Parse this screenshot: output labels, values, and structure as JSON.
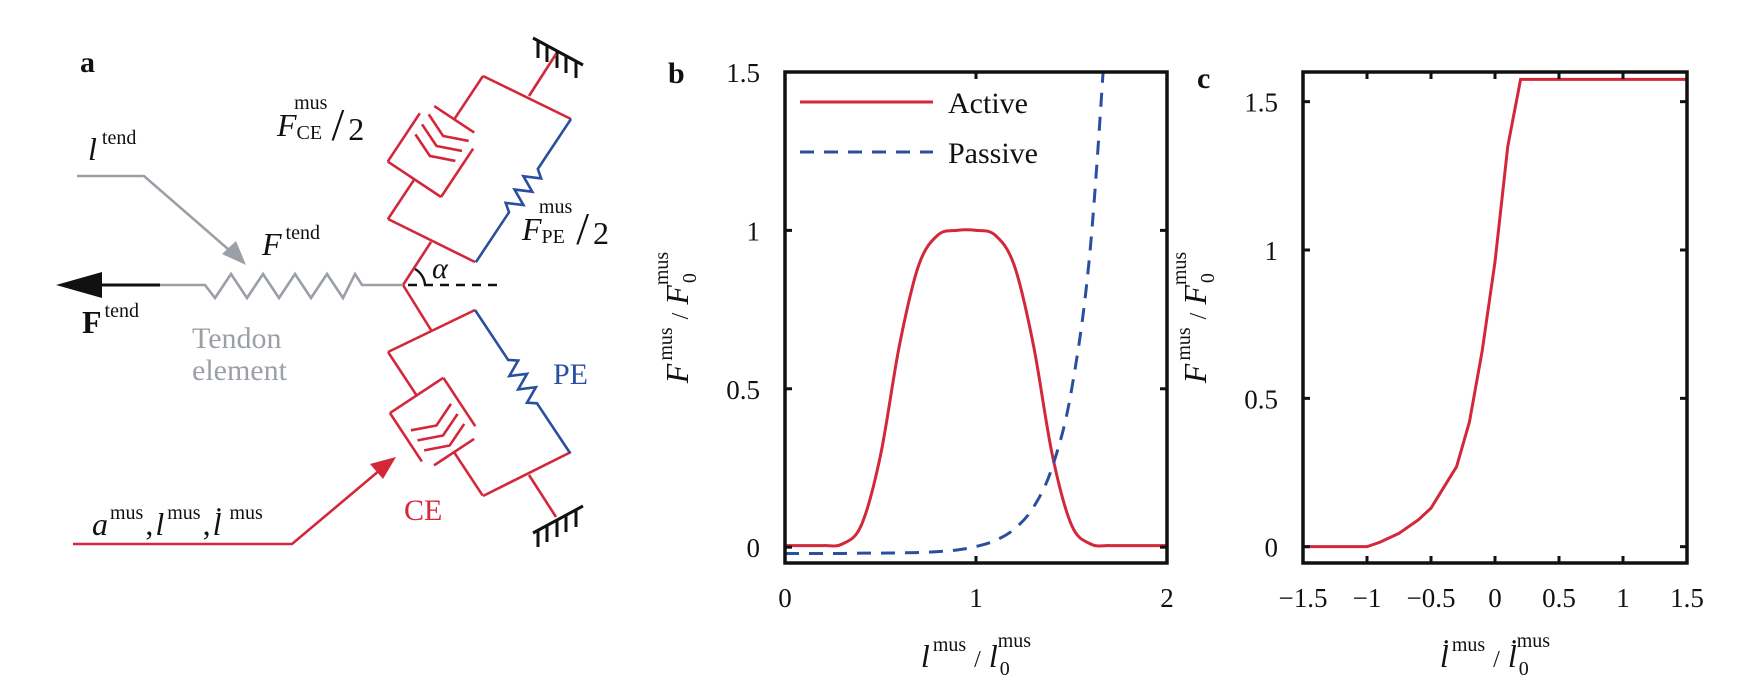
{
  "colors": {
    "muscle": "#d3283a",
    "passive": "#2b4f9f",
    "tendon": "#9b9fa6",
    "ink": "#111111"
  },
  "panel_a": {
    "label": "a",
    "l_tend": {
      "base": "l",
      "sup": "tend"
    },
    "F_tend_spring": {
      "base": "F",
      "sup": "tend"
    },
    "F_tend_force": {
      "base": "F",
      "sup": "tend"
    },
    "tendon_element": [
      "Tendon",
      "element"
    ],
    "F_CE": {
      "base": "F",
      "sub": "CE",
      "sup": "mus",
      "slash": "/",
      "den": "2"
    },
    "F_PE": {
      "base": "F",
      "sub": "PE",
      "sup": "mus",
      "slash": "/",
      "den": "2"
    },
    "alpha": "α",
    "PE": "PE",
    "CE": "CE",
    "inputs": {
      "sep": ",",
      "items": [
        {
          "base": "a",
          "sup": "mus"
        },
        {
          "base": "l",
          "sup": "mus"
        },
        {
          "base": "l̇",
          "sup": "mus"
        }
      ]
    }
  },
  "chart_data": [
    {
      "panel_label": "b",
      "type": "line",
      "xlim": [
        0,
        2
      ],
      "ylim": [
        -0.05,
        1.5
      ],
      "xticks": [
        0,
        1,
        2
      ],
      "xtick_labels": [
        "0",
        "1",
        "2"
      ],
      "yticks": [
        0,
        0.5,
        1,
        1.5
      ],
      "ytick_labels": [
        "0",
        "0.5",
        "1",
        "1.5"
      ],
      "xlabel": {
        "num": "l",
        "num_sup": "mus",
        "slash": "/",
        "den": "l",
        "den_sub": "0",
        "den_sup": "mus"
      },
      "ylabel": {
        "num": "F",
        "num_sup": "mus",
        "slash": "/",
        "den": "F",
        "den_sub": "0",
        "den_sup": "mus"
      },
      "legend": {
        "placement": "top-left",
        "entries": [
          "Active",
          "Passive"
        ]
      },
      "grid": false,
      "series": [
        {
          "name": "Active",
          "style": "solid",
          "color": "#d3283a",
          "x": [
            0,
            0.1,
            0.2,
            0.3,
            0.4,
            0.5,
            0.6,
            0.7,
            0.8,
            0.9,
            1.0,
            1.1,
            1.2,
            1.3,
            1.4,
            1.5,
            1.6,
            1.7,
            1.8,
            1.9,
            2.0
          ],
          "y": [
            0.005,
            0.005,
            0.005,
            0.01,
            0.07,
            0.29,
            0.64,
            0.89,
            0.985,
            1.0,
            1.0,
            0.985,
            0.89,
            0.64,
            0.29,
            0.07,
            0.01,
            0.005,
            0.005,
            0.005,
            0.005
          ]
        },
        {
          "name": "Passive",
          "style": "dashed",
          "color": "#2b4f9f",
          "x": [
            0,
            0.1,
            0.2,
            0.3,
            0.4,
            0.5,
            0.6,
            0.7,
            0.8,
            0.9,
            1.0,
            1.1,
            1.2,
            1.3,
            1.4,
            1.5,
            1.6,
            1.7
          ],
          "y": [
            -0.02,
            -0.02,
            -0.02,
            -0.02,
            -0.019,
            -0.019,
            -0.018,
            -0.017,
            -0.014,
            -0.009,
            0.002,
            0.021,
            0.057,
            0.125,
            0.254,
            0.496,
            0.954,
            1.82
          ]
        }
      ]
    },
    {
      "panel_label": "c",
      "type": "line",
      "xlim": [
        -1.5,
        1.5
      ],
      "ylim": [
        -0.055,
        1.6
      ],
      "xticks": [
        -1.5,
        -1,
        -0.5,
        0,
        0.5,
        1,
        1.5
      ],
      "xtick_labels": [
        "−1.5",
        "−1",
        "−0.5",
        "0",
        "0.5",
        "1",
        "1.5"
      ],
      "yticks": [
        0,
        0.5,
        1,
        1.5
      ],
      "ytick_labels": [
        "0",
        "0.5",
        "1",
        "1.5"
      ],
      "xlabel": {
        "num": "l̇",
        "num_sup": "mus",
        "slash": "/",
        "den": "l̇",
        "den_sub": "0",
        "den_sup": "mus"
      },
      "ylabel": {
        "num": "F",
        "num_sup": "mus",
        "slash": "/",
        "den": "F",
        "den_sub": "0",
        "den_sup": "mus"
      },
      "grid": false,
      "series": [
        {
          "style": "solid",
          "color": "#d3283a",
          "x": [
            -1.5,
            -1.0,
            -0.9,
            -0.75,
            -0.6,
            -0.5,
            -0.4,
            -0.3,
            -0.2,
            -0.1,
            0.0,
            0.1,
            0.2,
            1.5
          ],
          "y": [
            0,
            0,
            0.015,
            0.045,
            0.09,
            0.13,
            0.2,
            0.27,
            0.42,
            0.66,
            0.96,
            1.35,
            1.575,
            1.575
          ]
        }
      ]
    }
  ]
}
